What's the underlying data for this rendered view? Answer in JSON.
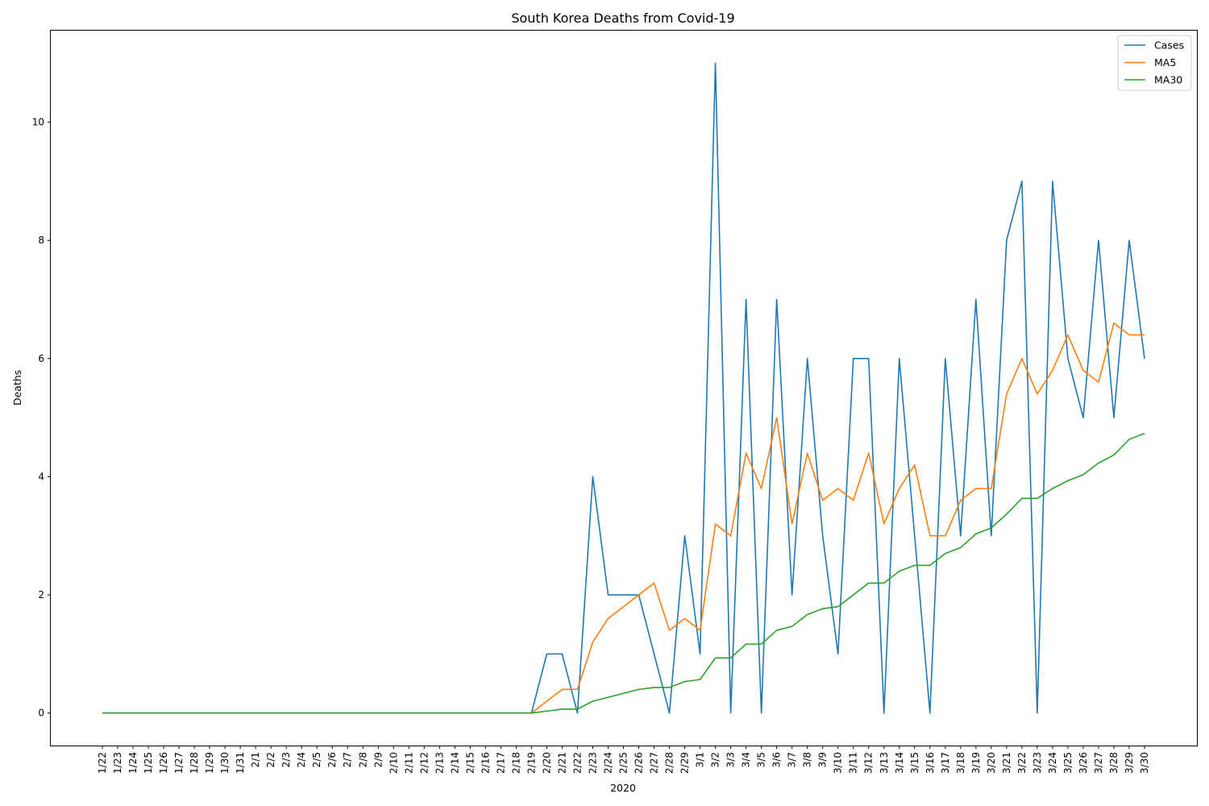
{
  "chart_data": {
    "type": "line",
    "title": "South Korea Deaths from Covid-19",
    "xlabel": "2020",
    "ylabel": "Deaths",
    "x": [
      "1/22",
      "1/23",
      "1/24",
      "1/25",
      "1/26",
      "1/27",
      "1/28",
      "1/29",
      "1/30",
      "1/31",
      "2/1",
      "2/2",
      "2/3",
      "2/4",
      "2/5",
      "2/6",
      "2/7",
      "2/8",
      "2/9",
      "2/10",
      "2/11",
      "2/12",
      "2/13",
      "2/14",
      "2/15",
      "2/16",
      "2/17",
      "2/18",
      "2/19",
      "2/20",
      "2/21",
      "2/22",
      "2/23",
      "2/24",
      "2/25",
      "2/26",
      "2/27",
      "2/28",
      "2/29",
      "3/1",
      "3/2",
      "3/3",
      "3/4",
      "3/5",
      "3/6",
      "3/7",
      "3/8",
      "3/9",
      "3/10",
      "3/11",
      "3/12",
      "3/13",
      "3/14",
      "3/15",
      "3/16",
      "3/17",
      "3/18",
      "3/19",
      "3/20",
      "3/21",
      "3/22",
      "3/23",
      "3/24",
      "3/25",
      "3/26",
      "3/27",
      "3/28",
      "3/29",
      "3/30"
    ],
    "yticks": [
      0,
      2,
      4,
      6,
      8,
      10
    ],
    "ylim": [
      -0.55,
      11.55
    ],
    "grid": false,
    "legend": "top-right",
    "series": [
      {
        "name": "Cases",
        "color": "#1f77b4",
        "values": [
          0,
          0,
          0,
          0,
          0,
          0,
          0,
          0,
          0,
          0,
          0,
          0,
          0,
          0,
          0,
          0,
          0,
          0,
          0,
          0,
          0,
          0,
          0,
          0,
          0,
          0,
          0,
          0,
          0,
          1,
          1,
          0,
          4,
          2,
          2,
          2,
          1,
          0,
          3,
          1,
          11,
          0,
          7,
          0,
          7,
          2,
          6,
          3,
          1,
          6,
          6,
          0,
          6,
          3,
          0,
          6,
          3,
          7,
          3,
          8,
          9,
          0,
          9,
          6,
          5,
          8,
          5,
          8,
          6
        ]
      },
      {
        "name": "MA5",
        "color": "#ff7f0e",
        "values": [
          0,
          0,
          0,
          0,
          0,
          0,
          0,
          0,
          0,
          0,
          0,
          0,
          0,
          0,
          0,
          0,
          0,
          0,
          0,
          0,
          0,
          0,
          0,
          0,
          0,
          0,
          0,
          0,
          0,
          0.2,
          0.4,
          0.4,
          1.2,
          1.6,
          1.8,
          2.0,
          2.2,
          1.4,
          1.6,
          1.4,
          3.2,
          3.0,
          4.4,
          3.8,
          5.0,
          3.2,
          4.4,
          3.6,
          3.8,
          3.6,
          4.4,
          3.2,
          3.8,
          4.2,
          3.0,
          3.0,
          3.6,
          3.8,
          3.8,
          5.4,
          6.0,
          5.4,
          5.8,
          6.4,
          5.8,
          5.6,
          6.6,
          6.4,
          6.4
        ]
      },
      {
        "name": "MA30",
        "color": "#2ca02c",
        "values": [
          0,
          0,
          0,
          0,
          0,
          0,
          0,
          0,
          0,
          0,
          0,
          0,
          0,
          0,
          0,
          0,
          0,
          0,
          0,
          0,
          0,
          0,
          0,
          0,
          0,
          0,
          0,
          0,
          0,
          0.033,
          0.067,
          0.067,
          0.2,
          0.267,
          0.333,
          0.4,
          0.433,
          0.433,
          0.533,
          0.567,
          0.933,
          0.933,
          1.167,
          1.167,
          1.4,
          1.467,
          1.667,
          1.767,
          1.8,
          2.0,
          2.2,
          2.2,
          2.4,
          2.5,
          2.5,
          2.7,
          2.8,
          3.033,
          3.133,
          3.367,
          3.633,
          3.633,
          3.8,
          3.933,
          4.033,
          4.233,
          4.367,
          4.633,
          4.733
        ]
      }
    ]
  }
}
